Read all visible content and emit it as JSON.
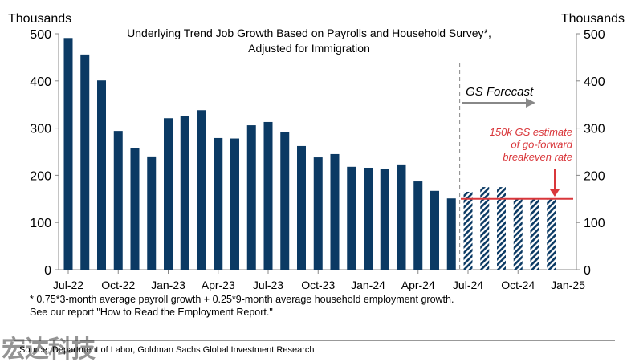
{
  "chart_data": {
    "type": "bar",
    "title": "Underlying Trend Job Growth Based on Payrolls and Household Survey*, Adjusted for Immigration",
    "title_lines": [
      "Underlying Trend Job Growth Based on Payrolls and Household Survey*,",
      "Adjusted for Immigration"
    ],
    "ylabel_left": "Thousands",
    "ylabel_right": "Thousands",
    "ylim": [
      0,
      500
    ],
    "yticks": [
      0,
      100,
      200,
      300,
      400,
      500
    ],
    "xtick_labels": [
      "Jul-22",
      "Oct-22",
      "Jan-23",
      "Apr-23",
      "Jul-23",
      "Oct-23",
      "Jan-24",
      "Apr-24",
      "Jul-24",
      "Oct-24",
      "Jan-25"
    ],
    "categories": [
      "Jul-22",
      "Aug-22",
      "Sep-22",
      "Oct-22",
      "Nov-22",
      "Dec-22",
      "Jan-23",
      "Feb-23",
      "Mar-23",
      "Apr-23",
      "May-23",
      "Jun-23",
      "Jul-23",
      "Aug-23",
      "Sep-23",
      "Oct-23",
      "Nov-23",
      "Dec-23",
      "Jan-24",
      "Feb-24",
      "Mar-24",
      "Apr-24",
      "May-24",
      "Jun-24",
      "Jul-24",
      "Aug-24",
      "Sep-24",
      "Oct-24",
      "Nov-24",
      "Dec-24"
    ],
    "series": [
      {
        "values": [
          491,
          456,
          401,
          294,
          258,
          240,
          321,
          325,
          338,
          279,
          278,
          306,
          313,
          291,
          262,
          238,
          245,
          218,
          216,
          213,
          223,
          187,
          167,
          151,
          null,
          null,
          null,
          null,
          null,
          null
        ],
        "color": "#0b3a64",
        "style": "solid"
      },
      {
        "values": [
          null,
          null,
          null,
          null,
          null,
          null,
          null,
          null,
          null,
          null,
          null,
          null,
          null,
          null,
          null,
          null,
          null,
          null,
          null,
          null,
          null,
          null,
          null,
          null,
          165,
          175,
          175,
          150,
          150,
          150
        ],
        "color": "#0b3a64",
        "style": "hatched"
      }
    ],
    "forecast_label": "GS Forecast",
    "reference_line": {
      "value": 150,
      "color": "#d9373b",
      "label_lines": [
        "150k GS estimate",
        "of go-forward",
        "breakeven rate"
      ]
    },
    "grid": false
  },
  "footnote": [
    "* 0.75*3-month average payroll growth + 0.25*9-month average household employment growth.",
    "See our report \"How to Read the Employment Report.\""
  ],
  "source": "Source: Department of Labor, Goldman Sachs Global Investment Research",
  "watermark": "宏达科技"
}
